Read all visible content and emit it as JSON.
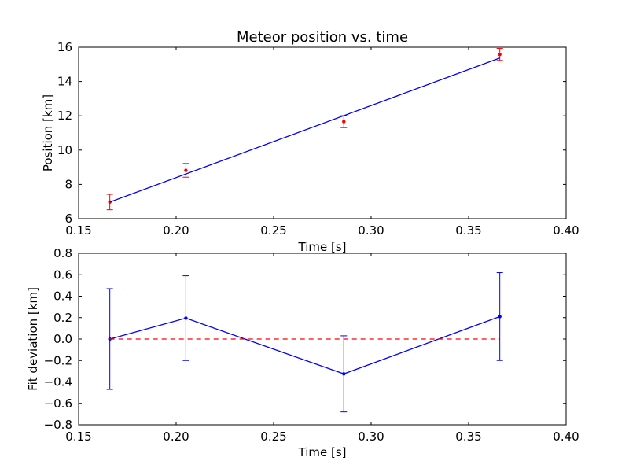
{
  "chart_data": [
    {
      "type": "line",
      "title": "Meteor position vs. time",
      "xlabel": "Time [s]",
      "ylabel": "Position [km]",
      "xlim": [
        0.15,
        0.4
      ],
      "ylim": [
        6,
        16
      ],
      "xticks": [
        0.15,
        0.2,
        0.25,
        0.3,
        0.35,
        0.4
      ],
      "xtick_labels": [
        "0.15",
        "0.20",
        "0.25",
        "0.30",
        "0.35",
        "0.40"
      ],
      "yticks": [
        6,
        8,
        10,
        12,
        14,
        16
      ],
      "ytick_labels": [
        "6",
        "8",
        "10",
        "12",
        "14",
        "16"
      ],
      "grid": false,
      "series": [
        {
          "kind": "errorbar",
          "color": "#ff0000",
          "x": [
            0.166,
            0.205,
            0.286,
            0.366
          ],
          "y": [
            6.97,
            8.82,
            11.66,
            15.58
          ],
          "yerr": [
            0.45,
            0.4,
            0.35,
            0.35
          ]
        },
        {
          "kind": "fit-line",
          "color": "#0000ff",
          "x": [
            0.166,
            0.366
          ],
          "y": [
            6.97,
            15.37
          ]
        }
      ]
    },
    {
      "type": "line",
      "title": "",
      "xlabel": "Time [s]",
      "ylabel": "Fit deviation [km]",
      "xlim": [
        0.15,
        0.4
      ],
      "ylim": [
        -0.8,
        0.8
      ],
      "xticks": [
        0.15,
        0.2,
        0.25,
        0.3,
        0.35,
        0.4
      ],
      "xtick_labels": [
        "0.15",
        "0.20",
        "0.25",
        "0.30",
        "0.35",
        "0.40"
      ],
      "yticks": [
        -0.8,
        -0.6,
        -0.4,
        -0.2,
        0.0,
        0.2,
        0.4,
        0.6,
        0.8
      ],
      "ytick_labels": [
        "−0.8",
        "−0.6",
        "−0.4",
        "−0.2",
        "0.0",
        "0.2",
        "0.4",
        "0.6",
        "0.8"
      ],
      "grid": false,
      "series": [
        {
          "kind": "errorbar-line",
          "color": "#0000ff",
          "x": [
            0.166,
            0.205,
            0.286,
            0.366
          ],
          "y": [
            0.0,
            0.195,
            -0.325,
            0.21
          ],
          "yerr": [
            0.47,
            0.395,
            0.355,
            0.41
          ]
        },
        {
          "kind": "zero-line",
          "color": "#ff0000",
          "x": [
            0.166,
            0.366
          ],
          "y": [
            0.0,
            0.0
          ]
        }
      ]
    }
  ]
}
